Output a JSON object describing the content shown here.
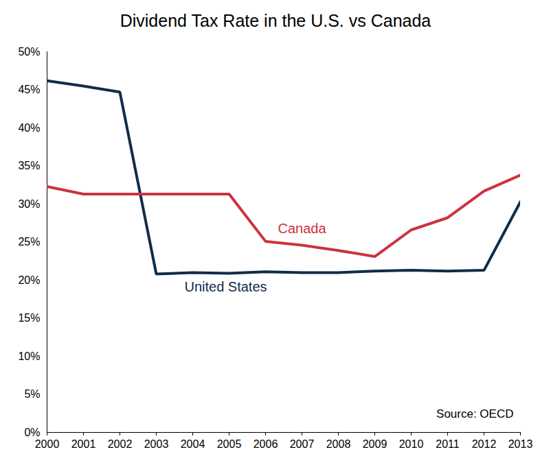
{
  "chart_data": {
    "type": "line",
    "title": "Dividend Tax Rate in the U.S. vs Canada",
    "source": "Source: OECD",
    "x": [
      2000,
      2001,
      2002,
      2003,
      2004,
      2005,
      2006,
      2007,
      2008,
      2009,
      2010,
      2011,
      2012,
      2013
    ],
    "series": [
      {
        "name": "United States",
        "color": "#0f2d4a",
        "values": [
          46.2,
          45.5,
          44.7,
          20.8,
          21.0,
          20.9,
          21.1,
          21.0,
          21.0,
          21.2,
          21.3,
          21.2,
          21.3,
          30.3
        ]
      },
      {
        "name": "Canada",
        "color": "#cc323e",
        "values": [
          32.3,
          31.3,
          31.3,
          31.3,
          31.3,
          31.3,
          25.1,
          24.6,
          23.9,
          23.1,
          26.6,
          28.2,
          31.7,
          33.8
        ]
      }
    ],
    "xlim": [
      2000,
      2013
    ],
    "xticks": [
      2000,
      2001,
      2002,
      2003,
      2004,
      2005,
      2006,
      2007,
      2008,
      2009,
      2010,
      2011,
      2012,
      2013
    ],
    "ylim": [
      0,
      50
    ],
    "yticks": [
      {
        "value": 0,
        "label": "0%"
      },
      {
        "value": 5,
        "label": "5%"
      },
      {
        "value": 10,
        "label": "10%"
      },
      {
        "value": 15,
        "label": "15%"
      },
      {
        "value": 20,
        "label": "20%"
      },
      {
        "value": 25,
        "label": "25%"
      },
      {
        "value": 30,
        "label": "30%"
      },
      {
        "value": 35,
        "label": "35%"
      },
      {
        "value": 40,
        "label": "40%"
      },
      {
        "value": 45,
        "label": "45%"
      },
      {
        "value": 50,
        "label": "50%"
      }
    ],
    "grid": false
  }
}
